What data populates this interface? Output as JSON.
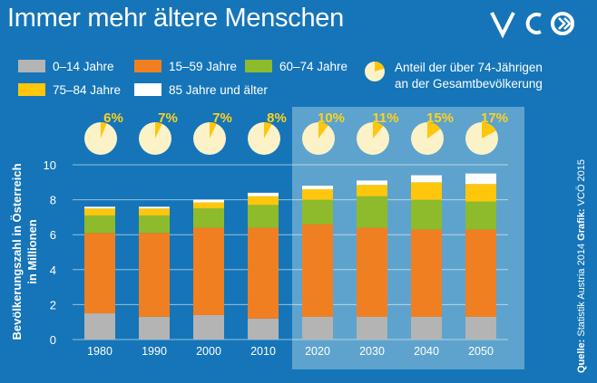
{
  "header": {
    "title": "Immer mehr ältere Menschen",
    "logo_text": "VCÖ"
  },
  "pie_legend": {
    "line1": "Anteil der über 74-Jährigen",
    "line2": "an der Gesamtbevölkerung"
  },
  "source_note": {
    "quelle_label": "Quelle:",
    "quelle_text": " Statistik Austria 2014 ",
    "grafik_label": "Grafik:",
    "grafik_text": " VCÖ 2015"
  },
  "colors": {
    "background": "#1575b8",
    "highlight": "#5ea3cd",
    "age_0_14": "#b4b4b4",
    "age_15_59": "#f07f22",
    "age_60_74": "#8dbb2c",
    "age_75_84": "#ffc60b",
    "age_85_plus": "#ffffff",
    "pie_base": "#fcf2c8",
    "pie_slice": "#ffc60b",
    "pct_text": "#ffd21f"
  },
  "chart_data": {
    "type": "bar",
    "stacked": true,
    "title": "Immer mehr ältere Menschen",
    "ylabel_line1": "Bevölkerungszahl in Österreich",
    "ylabel_line2": "in Millionen",
    "xlabel": "",
    "ylim": [
      0,
      10
    ],
    "yticks": [
      "0",
      "2",
      "4",
      "6",
      "8",
      "10"
    ],
    "grid": true,
    "legend_position": "top",
    "categories": [
      "1980",
      "1990",
      "2000",
      "2010",
      "2020",
      "2030",
      "2040",
      "2050"
    ],
    "highlight_from_category": "2020",
    "series": [
      {
        "name": "0–14 Jahre",
        "color_key": "age_0_14",
        "values": [
          1.5,
          1.3,
          1.4,
          1.2,
          1.3,
          1.3,
          1.3,
          1.3
        ]
      },
      {
        "name": "15–59 Jahre",
        "color_key": "age_15_59",
        "values": [
          4.6,
          4.8,
          5.0,
          5.2,
          5.3,
          5.1,
          5.0,
          5.0
        ]
      },
      {
        "name": "60–74 Jahre",
        "color_key": "age_60_74",
        "values": [
          1.0,
          1.0,
          1.1,
          1.3,
          1.4,
          1.8,
          1.7,
          1.6
        ]
      },
      {
        "name": "75–84 Jahre",
        "color_key": "age_75_84",
        "values": [
          0.4,
          0.4,
          0.35,
          0.5,
          0.6,
          0.65,
          1.0,
          1.0
        ]
      },
      {
        "name": "85 Jahre und älter",
        "color_key": "age_85_plus",
        "values": [
          0.1,
          0.1,
          0.15,
          0.2,
          0.2,
          0.25,
          0.4,
          0.6
        ]
      }
    ],
    "share_over_74": {
      "values": [
        6,
        7,
        7,
        8,
        10,
        11,
        15,
        17
      ],
      "labels": [
        "6%",
        "7%",
        "7%",
        "8%",
        "10%",
        "11%",
        "15%",
        "17%"
      ]
    }
  }
}
